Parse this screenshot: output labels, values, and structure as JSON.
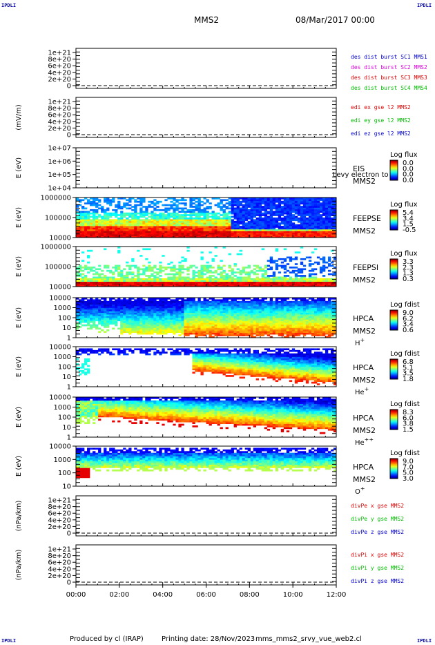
{
  "header": {
    "corner_label": "IPDLI",
    "spacecraft": "MMS2",
    "date_time": "08/Mar/2017 00:00"
  },
  "footer": {
    "produced_by": "Produced by cl (IRAP)",
    "printing_date": "Printing date: 28/Nov/2023",
    "script_name": "mms_mms2_srvy_vue_web2.cl"
  },
  "chart_data": {
    "type": "heatmap",
    "x_ticks": [
      "00:00",
      "02:00",
      "04:00",
      "06:00",
      "08:00",
      "10:00",
      "12:00"
    ],
    "xlim_hours": [
      0,
      12
    ],
    "panels": [
      {
        "kind": "line",
        "ylabel": "",
        "yticks": [
          "1e+21",
          "8e+20",
          "6e+20",
          "4e+20",
          "2e+20",
          "0"
        ],
        "legend": [
          {
            "text": "des dist burst SC1 MMS1",
            "color": "#0000cc"
          },
          {
            "text": "des dist burst SC2 MMS2",
            "color": "#dd00dd"
          },
          {
            "text": "des dist burst SC3 MMS3",
            "color": "#dd0000"
          },
          {
            "text": "des dist burst SC4 MMS4",
            "color": "#00bb00"
          }
        ]
      },
      {
        "kind": "line",
        "ylabel": "(mV/m)",
        "yticks": [
          "1e+21",
          "8e+20",
          "6e+20",
          "4e+20",
          "2e+20",
          "0"
        ],
        "legend": [
          {
            "text": "edi ex gse l2 MMS2",
            "color": "#dd0000"
          },
          {
            "text": "edi ey gse l2 MMS2",
            "color": "#00bb00"
          },
          {
            "text": "edi ez gse l2 MMS2",
            "color": "#0000cc"
          }
        ]
      },
      {
        "kind": "spectro",
        "ylabel": "E (eV)",
        "yticks": [
          "1e+07",
          "1e+06",
          "1e+05",
          "1e+04"
        ],
        "labels": [
          "EIS",
          "MMS2"
        ],
        "overlay": "Levy electron to",
        "cbar_title": "Log flux",
        "cbar_ticks": [
          "0.0",
          "0.0",
          "0.0",
          "0.0"
        ],
        "empty": true
      },
      {
        "kind": "spectro",
        "ylabel": "E (eV)",
        "yticks": [
          "1000000",
          "100000",
          "10000"
        ],
        "labels": [
          "FEEPSE",
          "MMS2"
        ],
        "cbar_title": "Log flux",
        "cbar_ticks": [
          "5.4",
          "3.4",
          "1.5",
          "-0.5"
        ],
        "variant": "feepse"
      },
      {
        "kind": "spectro",
        "ylabel": "E (eV)",
        "yticks": [
          "1000000",
          "100000",
          "10000"
        ],
        "labels": [
          "FEEPSI",
          "MMS2"
        ],
        "cbar_title": "Log flux",
        "cbar_ticks": [
          "3.3",
          "2.3",
          "1.3",
          "0.3"
        ],
        "variant": "feepsi"
      },
      {
        "kind": "spectro",
        "ylabel": "E (eV)",
        "yticks": [
          "10000",
          "1000",
          "100",
          "10",
          "1"
        ],
        "labels": [
          "HPCA",
          "MMS2"
        ],
        "species": "H",
        "species_sup": "+",
        "cbar_title": "Log fdist",
        "cbar_ticks": [
          "9.0",
          "6.2",
          "3.4",
          "0.6"
        ],
        "variant": "hplus"
      },
      {
        "kind": "spectro",
        "ylabel": "E (eV)",
        "yticks": [
          "10000",
          "1000",
          "100",
          "10",
          "1"
        ],
        "labels": [
          "HPCA",
          "MMS2"
        ],
        "species": "He",
        "species_sup": "+",
        "cbar_title": "Log fdist",
        "cbar_ticks": [
          "6.8",
          "5.1",
          "3.5",
          "1.8"
        ],
        "variant": "heplus"
      },
      {
        "kind": "spectro",
        "ylabel": "E (eV)",
        "yticks": [
          "10000",
          "1000",
          "100",
          "10",
          "1"
        ],
        "labels": [
          "HPCA",
          "MMS2"
        ],
        "species": "He",
        "species_sup": "++",
        "cbar_title": "Log fdist",
        "cbar_ticks": [
          "8.3",
          "6.0",
          "3.8",
          "1.5"
        ],
        "variant": "heplusplus"
      },
      {
        "kind": "spectro",
        "ylabel": "E (eV)",
        "yticks": [
          "10000",
          "1000",
          "100",
          "10"
        ],
        "labels": [
          "HPCA",
          "MMS2"
        ],
        "species": "O",
        "species_sup": "+",
        "cbar_title": "Log fdist",
        "cbar_ticks": [
          "9.0",
          "7.0",
          "5.0",
          "3.0"
        ],
        "variant": "oplus"
      },
      {
        "kind": "line",
        "ylabel": "(nPa/km)",
        "yticks": [
          "1e+21",
          "8e+20",
          "6e+20",
          "4e+20",
          "2e+20",
          "0"
        ],
        "legend": [
          {
            "text": "divPe x gse MMS2",
            "color": "#dd0000"
          },
          {
            "text": "divPe y gse MMS2",
            "color": "#00bb00"
          },
          {
            "text": "divPe z gse MMS2",
            "color": "#0000cc"
          }
        ]
      },
      {
        "kind": "line",
        "ylabel": "(nPa/km)",
        "yticks": [
          "1e+21",
          "8e+20",
          "6e+20",
          "4e+20",
          "2e+20",
          "0"
        ],
        "legend": [
          {
            "text": "divPi x gse MMS2",
            "color": "#dd0000"
          },
          {
            "text": "divPi y gse MMS2",
            "color": "#00bb00"
          },
          {
            "text": "divPi z gse MMS2",
            "color": "#0000cc"
          }
        ]
      }
    ]
  }
}
